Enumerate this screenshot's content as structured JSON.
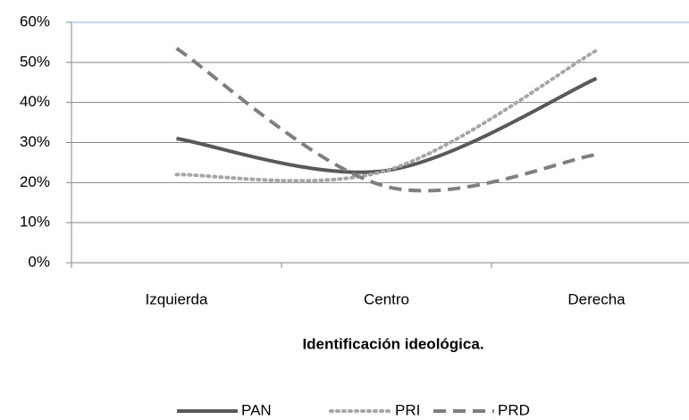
{
  "chart_data": {
    "type": "line",
    "x_label": "Identificación ideológica.",
    "categories": [
      "Izquierda",
      "Centro",
      "Derecha"
    ],
    "series": [
      {
        "name": "PAN",
        "color": "#595959",
        "dash": "solid",
        "values": [
          31,
          23,
          46
        ]
      },
      {
        "name": "PRI",
        "color": "#a6a6a6",
        "dash": "dotted",
        "values": [
          22,
          23,
          53
        ]
      },
      {
        "name": "PRD",
        "color": "#7f7f7f",
        "dash": "dashed",
        "values": [
          53.5,
          19,
          27
        ]
      }
    ],
    "smooth": true,
    "ylim": [
      0,
      60
    ],
    "yticks": [
      {
        "value": 0,
        "label": "0%"
      },
      {
        "value": 10,
        "label": "10%"
      },
      {
        "value": 20,
        "label": "20%"
      },
      {
        "value": 30,
        "label": "30%"
      },
      {
        "value": 40,
        "label": "40%"
      },
      {
        "value": 50,
        "label": "50%"
      },
      {
        "value": 60,
        "label": "60%"
      }
    ],
    "grid": true,
    "legend": "bottom"
  }
}
